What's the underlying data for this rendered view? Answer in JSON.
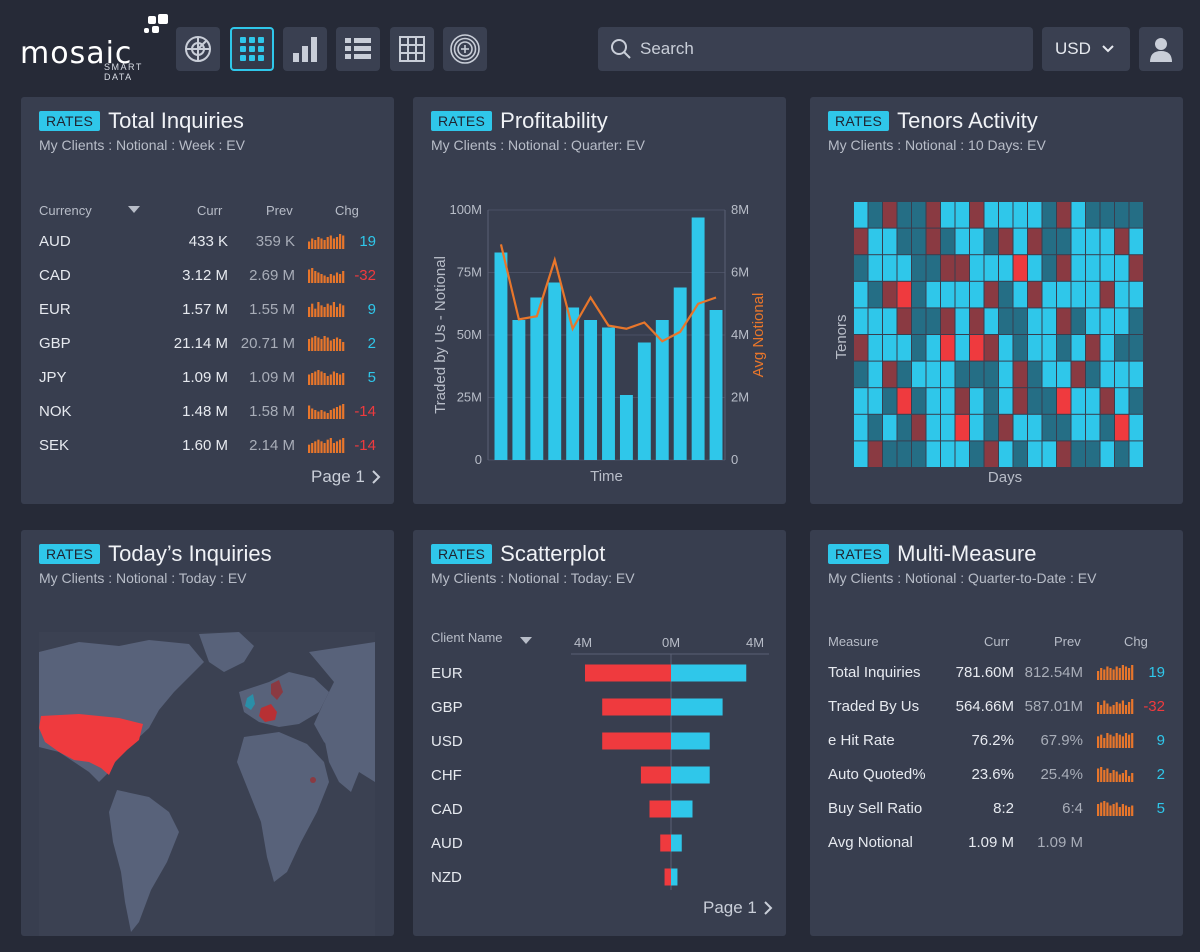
{
  "header": {
    "logo_text": "mosaic",
    "logo_sub": "SMART DATA",
    "nav": [
      {
        "icon": "radar-icon"
      },
      {
        "icon": "grid-dots-icon",
        "active": true
      },
      {
        "icon": "bar-chart-icon"
      },
      {
        "icon": "list-icon"
      },
      {
        "icon": "table-grid-icon"
      },
      {
        "icon": "target-plus-icon"
      }
    ],
    "search_placeholder": "Search",
    "currency": "USD"
  },
  "colors": {
    "accent": "#2fc7ea",
    "negative": "#ef3a3e",
    "orange": "#e8762b",
    "panel": "#383e4f",
    "bg": "#262a37"
  },
  "panels": {
    "total_inquiries": {
      "badge": "RATES",
      "title": "Total Inquiries",
      "subtitle": "My Clients : Notional : Week : EV",
      "columns": [
        "Currency",
        "Curr",
        "Prev",
        "Chg"
      ],
      "rows": [
        {
          "name": "AUD",
          "curr": "433 K",
          "prev": "359 K",
          "chg": "19",
          "sign": "pos",
          "spark": [
            5,
            7,
            6,
            8,
            7,
            6,
            8,
            9,
            7,
            8,
            10,
            9
          ]
        },
        {
          "name": "CAD",
          "curr": "3.12 M",
          "prev": "2.69 M",
          "chg": "-32",
          "sign": "neg",
          "spark": [
            9,
            10,
            8,
            7,
            6,
            5,
            4,
            6,
            5,
            7,
            6,
            8
          ]
        },
        {
          "name": "EUR",
          "curr": "1.57 M",
          "prev": "1.55 M",
          "chg": "9",
          "sign": "pos",
          "spark": [
            6,
            8,
            5,
            9,
            7,
            6,
            8,
            7,
            9,
            6,
            8,
            7
          ]
        },
        {
          "name": "GBP",
          "curr": "21.14 M",
          "prev": "20.71 M",
          "chg": "2",
          "sign": "pos",
          "spark": [
            8,
            9,
            10,
            9,
            8,
            10,
            9,
            7,
            8,
            9,
            8,
            6
          ]
        },
        {
          "name": "JPY",
          "curr": "1.09 M",
          "prev": "1.09 M",
          "chg": "5",
          "sign": "pos",
          "spark": [
            7,
            8,
            9,
            10,
            9,
            8,
            6,
            7,
            9,
            8,
            7,
            8
          ]
        },
        {
          "name": "NOK",
          "curr": "1.48 M",
          "prev": "1.58 M",
          "chg": "-14",
          "sign": "neg",
          "spark": [
            9,
            7,
            6,
            5,
            6,
            5,
            4,
            6,
            7,
            8,
            9,
            10
          ]
        },
        {
          "name": "SEK",
          "curr": "1.60 M",
          "prev": "2.14 M",
          "chg": "-14",
          "sign": "neg",
          "spark": [
            5,
            6,
            7,
            8,
            7,
            6,
            8,
            9,
            6,
            7,
            8,
            9
          ]
        }
      ],
      "page": "Page 1"
    },
    "profitability": {
      "badge": "RATES",
      "title": "Profitability",
      "subtitle": "My Clients : Notional : Quarter: EV"
    },
    "tenors": {
      "badge": "RATES",
      "title": "Tenors Activity",
      "subtitle": "My Clients : Notional : 10 Days: EV"
    },
    "todays": {
      "badge": "RATES",
      "title": "Today’s Inquiries",
      "subtitle": "My Clients : Notional : Today : EV"
    },
    "scatter": {
      "badge": "RATES",
      "title": "Scatterplot",
      "subtitle": "My Clients : Notional : Today: EV",
      "column": "Client Name",
      "page": "Page 1"
    },
    "multi": {
      "badge": "RATES",
      "title": "Multi-Measure",
      "subtitle": "My Clients : Notional : Quarter-to-Date : EV",
      "columns": [
        "Measure",
        "Curr",
        "Prev",
        "Chg"
      ],
      "rows": [
        {
          "name": "Total Inquiries",
          "curr": "781.60M",
          "prev": "812.54M",
          "chg": "19",
          "sign": "pos",
          "spark": [
            6,
            8,
            7,
            9,
            8,
            7,
            9,
            8,
            10,
            9,
            8,
            10
          ]
        },
        {
          "name": "Traded By Us",
          "curr": "564.66M",
          "prev": "587.01M",
          "chg": "-32",
          "sign": "neg",
          "spark": [
            8,
            6,
            9,
            7,
            5,
            6,
            8,
            7,
            9,
            6,
            8,
            10
          ]
        },
        {
          "name": "e Hit Rate",
          "curr": "76.2%",
          "prev": "67.9%",
          "chg": "9",
          "sign": "pos",
          "spark": [
            7,
            8,
            6,
            9,
            8,
            7,
            9,
            8,
            7,
            9,
            8,
            9
          ]
        },
        {
          "name": "Auto Quoted%",
          "curr": "23.6%",
          "prev": "25.4%",
          "chg": "2",
          "sign": "pos",
          "spark": [
            9,
            10,
            8,
            9,
            6,
            8,
            7,
            5,
            6,
            8,
            4,
            6
          ]
        },
        {
          "name": "Buy Sell Ratio",
          "curr": "8:2",
          "prev": "6:4",
          "chg": "5",
          "sign": "pos",
          "spark": [
            8,
            9,
            10,
            9,
            7,
            8,
            9,
            6,
            8,
            7,
            6,
            7
          ]
        },
        {
          "name": "Avg Notional",
          "curr": "1.09 M",
          "prev": "1.09 M",
          "chg": "",
          "sign": "pos",
          "spark": []
        }
      ]
    }
  },
  "chart_data": [
    {
      "type": "bar",
      "title": "Profitability",
      "xlabel": "Time",
      "ylabel": "Traded by Us - Notional",
      "y2label": "Avg Notional",
      "yticks": [
        "0",
        "25M",
        "50M",
        "75M",
        "100M"
      ],
      "y2ticks": [
        "0",
        "2M",
        "4M",
        "6M",
        "8M"
      ],
      "ylim": [
        0,
        100
      ],
      "y2lim": [
        0,
        8
      ],
      "series": [
        {
          "kind": "bar",
          "values": [
            83,
            56,
            65,
            71,
            61,
            56,
            53,
            26,
            47,
            56,
            69,
            97,
            60
          ]
        },
        {
          "kind": "line",
          "values": [
            6.9,
            4.5,
            4.6,
            6.4,
            4.2,
            5.2,
            4.3,
            4.2,
            4.4,
            3.8,
            4.1,
            5.0,
            5.2
          ]
        }
      ]
    },
    {
      "type": "heatmap",
      "title": "Tenors Activity",
      "xlabel": "Days",
      "ylabel": "Tenors",
      "rows": 10,
      "cols": 20,
      "levels": [
        "32122133133332132222",
        "13322123321312233313",
        "23332211333432133331",
        "32142333312313333133",
        "33312213132233123332",
        "13332343413233231322",
        "23123332223123312333",
        "33242331323122433132",
        "32321334321332233243",
        "31222333213233122323"
      ]
    },
    {
      "type": "bar",
      "title": "Scatterplot",
      "orientation": "horizontal",
      "xticks": [
        "4M",
        "0M",
        "4M"
      ],
      "categories": [
        "EUR",
        "GBP",
        "USD",
        "CHF",
        "CAD",
        "AUD",
        "NZD"
      ],
      "series": [
        {
          "values": [
            -4.0,
            -3.2,
            -3.2,
            -1.4,
            -1.0,
            -0.5,
            -0.3
          ]
        },
        {
          "values": [
            3.5,
            2.4,
            1.8,
            1.8,
            1.0,
            0.5,
            0.3
          ]
        }
      ]
    }
  ]
}
